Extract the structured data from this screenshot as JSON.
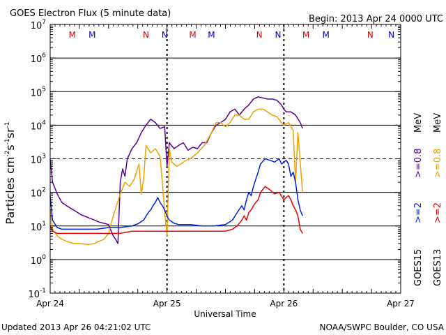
{
  "chart_data": {
    "type": "line",
    "title": "GOES Electron Flux (5 minute data)",
    "begin_label": "Begin: 2013 Apr 24 0000 UTC",
    "xlabel": "Universal Time",
    "ylabel_parts": {
      "base": "Particles cm",
      "e1": "-2",
      "s": "s",
      "e2": "-1",
      "sr": "sr",
      "e3": "-1"
    },
    "updated": "Updated 2013 Apr 26 04:21:02 UTC",
    "credit": "NOAA/SWPC Boulder, CO USA",
    "x_ticks": [
      "Apr 24",
      "Apr 25",
      "Apr 26",
      "Apr 27"
    ],
    "xlim_days": [
      0,
      3
    ],
    "ylim_exp": [
      -1,
      7
    ],
    "y_ticks": [
      {
        "base": "10",
        "exp": "-1"
      },
      {
        "base": "10",
        "exp": "0"
      },
      {
        "base": "10",
        "exp": "1"
      },
      {
        "base": "10",
        "exp": "2"
      },
      {
        "base": "10",
        "exp": "3"
      },
      {
        "base": "10",
        "exp": "4"
      },
      {
        "base": "10",
        "exp": "5"
      },
      {
        "base": "10",
        "exp": "6"
      },
      {
        "base": "10",
        "exp": "7"
      }
    ],
    "legend": {
      "goes15": "GOES15",
      "goes13": "GOES13",
      "ge2": ">=2",
      "ge08": ">=0.8",
      "mev": "MeV"
    },
    "markers": [
      {
        "label": "M",
        "x": 0.19,
        "color": "#dd0000"
      },
      {
        "label": "M",
        "x": 0.36,
        "color": "#0000cc"
      },
      {
        "label": "N",
        "x": 0.82,
        "color": "#dd0000"
      },
      {
        "label": "N",
        "x": 0.98,
        "color": "#0000cc"
      },
      {
        "label": "M",
        "x": 1.22,
        "color": "#dd0000"
      },
      {
        "label": "M",
        "x": 1.38,
        "color": "#0000cc"
      },
      {
        "label": "N",
        "x": 1.79,
        "color": "#dd0000"
      },
      {
        "label": "N",
        "x": 1.95,
        "color": "#0000cc"
      },
      {
        "label": "M",
        "x": 2.19,
        "color": "#dd0000"
      },
      {
        "label": "M",
        "x": 2.36,
        "color": "#0000cc"
      },
      {
        "label": "N",
        "x": 2.74,
        "color": "#dd0000"
      },
      {
        "label": "N",
        "x": 2.92,
        "color": "#0000cc"
      }
    ],
    "series": [
      {
        "name": ">=0.8 MeV GOES15",
        "color": "#5b0096",
        "x": [
          0,
          0.02,
          0.06,
          0.1,
          0.14,
          0.2,
          0.26,
          0.32,
          0.38,
          0.42,
          0.46,
          0.5,
          0.54,
          0.56,
          0.58,
          0.6,
          0.62,
          0.64,
          0.66,
          0.7,
          0.74,
          0.78,
          0.82,
          0.86,
          0.9,
          0.94,
          0.98,
          1.0,
          1.02,
          1.06,
          1.1,
          1.14,
          1.18,
          1.22,
          1.26,
          1.3,
          1.34,
          1.38,
          1.42,
          1.46,
          1.5,
          1.54,
          1.58,
          1.62,
          1.66,
          1.7,
          1.74,
          1.78,
          1.82,
          1.86,
          1.9,
          1.94,
          1.98,
          2.0,
          2.02,
          2.06,
          2.1,
          2.14,
          2.16
        ],
        "y": [
          1000,
          200,
          90,
          50,
          40,
          30,
          22,
          18,
          15,
          13,
          12,
          11,
          5,
          4,
          3,
          200,
          500,
          300,
          1000,
          2000,
          3000,
          6000,
          10000,
          15000,
          12000,
          8000,
          9000,
          600,
          3000,
          2000,
          2500,
          3000,
          1800,
          2200,
          2000,
          3000,
          3000,
          6000,
          10000,
          12000,
          15000,
          25000,
          30000,
          20000,
          30000,
          40000,
          60000,
          70000,
          65000,
          60000,
          60000,
          55000,
          40000,
          30000,
          25000,
          25000,
          20000,
          12000,
          8000
        ]
      },
      {
        "name": ">=0.8 MeV GOES13",
        "color": "#f0a000",
        "x": [
          0,
          0.02,
          0.06,
          0.1,
          0.14,
          0.2,
          0.26,
          0.32,
          0.38,
          0.42,
          0.46,
          0.5,
          0.54,
          0.6,
          0.64,
          0.68,
          0.72,
          0.76,
          0.78,
          0.8,
          0.82,
          0.86,
          0.9,
          0.94,
          0.96,
          0.98,
          1.0,
          1.02,
          1.04,
          1.08,
          1.12,
          1.16,
          1.2,
          1.26,
          1.32,
          1.38,
          1.42,
          1.46,
          1.5,
          1.54,
          1.58,
          1.62,
          1.66,
          1.7,
          1.74,
          1.78,
          1.82,
          1.86,
          1.9,
          1.94,
          1.98,
          2.0,
          2.04,
          2.08,
          2.1,
          2.12,
          2.14,
          2.16
        ],
        "y": [
          30,
          8,
          5,
          4,
          3.5,
          3,
          3,
          2.8,
          3,
          3.5,
          4,
          6,
          20,
          90,
          200,
          150,
          250,
          700,
          90,
          250,
          2500,
          1500,
          2000,
          1200,
          200,
          25,
          5,
          2000,
          800,
          600,
          700,
          900,
          1000,
          1500,
          2500,
          6000,
          12000,
          12000,
          9000,
          12000,
          20000,
          20000,
          15000,
          15000,
          25000,
          30000,
          30000,
          25000,
          20000,
          18000,
          12000,
          10000,
          12000,
          7000,
          200,
          6000,
          800,
          100
        ]
      },
      {
        "name": ">=2 MeV GOES15",
        "color": "#0022dd",
        "x": [
          0,
          0.02,
          0.06,
          0.1,
          0.2,
          0.3,
          0.4,
          0.5,
          0.6,
          0.7,
          0.76,
          0.8,
          0.84,
          0.86,
          0.88,
          0.9,
          0.92,
          0.94,
          0.96,
          0.98,
          1.0,
          1.02,
          1.06,
          1.1,
          1.2,
          1.3,
          1.4,
          1.5,
          1.56,
          1.6,
          1.64,
          1.66,
          1.68,
          1.7,
          1.72,
          1.74,
          1.76,
          1.78,
          1.8,
          1.84,
          1.88,
          1.92,
          1.96,
          1.98,
          2.0,
          2.02,
          2.04,
          2.06,
          2.08,
          2.1,
          2.12,
          2.14,
          2.16
        ],
        "y": [
          80,
          15,
          9,
          8,
          8,
          8,
          8,
          9,
          9,
          10,
          12,
          15,
          25,
          30,
          40,
          50,
          70,
          50,
          40,
          30,
          20,
          15,
          12,
          11,
          11,
          10,
          10,
          11,
          15,
          25,
          40,
          30,
          60,
          100,
          80,
          150,
          250,
          400,
          700,
          1000,
          900,
          800,
          1000,
          700,
          800,
          900,
          700,
          300,
          400,
          200,
          60,
          30,
          20
        ]
      },
      {
        "name": ">=2 MeV GOES13",
        "color": "#ee0000",
        "x": [
          0,
          0.02,
          0.06,
          0.1,
          0.2,
          0.3,
          0.4,
          0.5,
          0.6,
          0.7,
          0.8,
          0.9,
          1.0,
          1.1,
          1.2,
          1.3,
          1.4,
          1.5,
          1.56,
          1.6,
          1.64,
          1.66,
          1.68,
          1.7,
          1.72,
          1.74,
          1.76,
          1.78,
          1.8,
          1.84,
          1.88,
          1.92,
          1.96,
          2.0,
          2.02,
          2.04,
          2.06,
          2.08,
          2.1,
          2.12,
          2.14,
          2.16
        ],
        "y": [
          10,
          7,
          6,
          6,
          6,
          6,
          6,
          6,
          6,
          7,
          7,
          7,
          7,
          7,
          7,
          7,
          7,
          7,
          8,
          10,
          15,
          20,
          15,
          25,
          30,
          40,
          50,
          60,
          100,
          150,
          120,
          90,
          100,
          60,
          70,
          80,
          60,
          40,
          30,
          20,
          8,
          6
        ]
      }
    ]
  }
}
